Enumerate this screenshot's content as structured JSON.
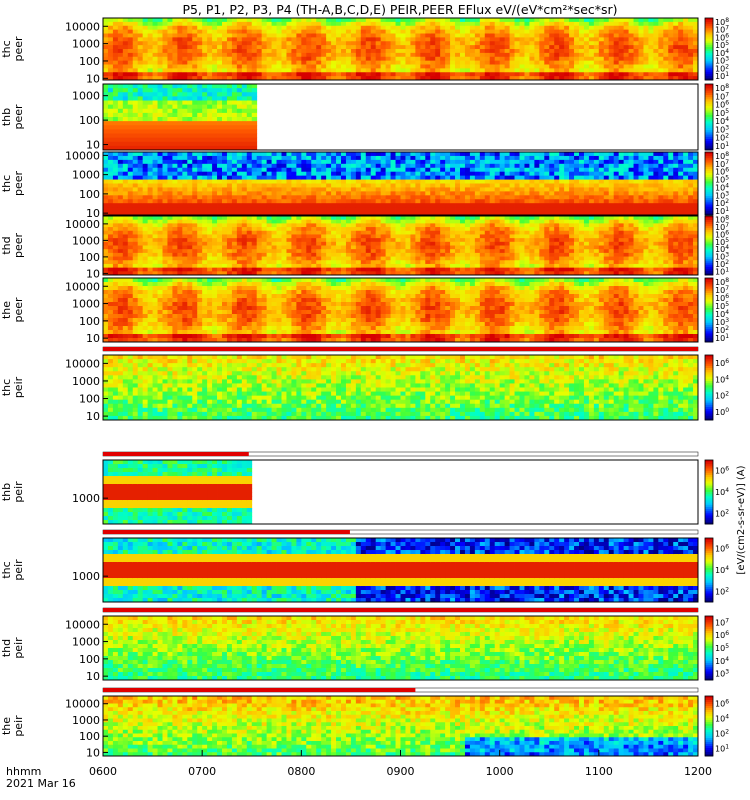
{
  "title": "P5, P1, P2, P3, P4 (TH-A,B,C,D,E) PEIR,PEER EFlux eV/(eV*cm²*sec*sr)",
  "time_axis": {
    "label_line1": "hhmm",
    "label_line2": "2021 Mar 16",
    "ticks": [
      "0600",
      "0700",
      "0800",
      "0900",
      "1000",
      "1100",
      "1200"
    ]
  },
  "colorbar_label": "[eV/(cm2-s-sr-eV)] (A)",
  "chart_data": [
    {
      "type": "heatmap",
      "ylabel": [
        "thc",
        "peer"
      ],
      "yscale": "log",
      "y_ticks": [
        "10",
        "100",
        "1000",
        "10000"
      ],
      "ylim": [
        8,
        30000
      ],
      "x_range": [
        "0600",
        "1200"
      ],
      "coverage": [
        0,
        1
      ],
      "bar_fraction": 0,
      "colorbar_ticks": [
        "10^1",
        "10^2",
        "10^3",
        "10^4",
        "10^5",
        "10^6",
        "10^7",
        "10^8"
      ],
      "profile": "peer_full",
      "seed": 11
    },
    {
      "type": "heatmap",
      "ylabel": [
        "thb",
        "peer"
      ],
      "yscale": "log",
      "y_ticks": [
        "10",
        "100",
        "1000"
      ],
      "ylim": [
        6,
        3000
      ],
      "x_range": [
        "0600",
        "1200"
      ],
      "coverage": [
        0,
        0.255
      ],
      "bar_fraction": 0,
      "colorbar_ticks": [
        "10^1",
        "10^2",
        "10^3",
        "10^4",
        "10^5",
        "10^6",
        "10^7",
        "10^8"
      ],
      "profile": "thb_peer",
      "seed": 23
    },
    {
      "type": "heatmap",
      "ylabel": [
        "thc",
        "peer"
      ],
      "yscale": "log",
      "y_ticks": [
        "10",
        "100",
        "1000",
        "10000"
      ],
      "ylim": [
        8,
        15000
      ],
      "x_range": [
        "0600",
        "1200"
      ],
      "coverage": [
        0,
        1
      ],
      "bar_fraction": 0,
      "colorbar_ticks": [
        "10^1",
        "10^2",
        "10^3",
        "10^4",
        "10^5",
        "10^6",
        "10^7",
        "10^8"
      ],
      "profile": "thc_peer",
      "seed": 37
    },
    {
      "type": "heatmap",
      "ylabel": [
        "thd",
        "peer"
      ],
      "yscale": "log",
      "y_ticks": [
        "10",
        "100",
        "1000",
        "10000"
      ],
      "ylim": [
        8,
        30000
      ],
      "x_range": [
        "0600",
        "1200"
      ],
      "coverage": [
        0,
        1
      ],
      "bar_fraction": 0,
      "colorbar_ticks": [
        "10^1",
        "10^2",
        "10^3",
        "10^4",
        "10^5",
        "10^6",
        "10^7",
        "10^8"
      ],
      "profile": "peer_full",
      "seed": 41
    },
    {
      "type": "heatmap",
      "ylabel": [
        "the",
        "peer"
      ],
      "yscale": "log",
      "y_ticks": [
        "10",
        "100",
        "1000",
        "10000"
      ],
      "ylim": [
        6,
        30000
      ],
      "x_range": [
        "0600",
        "1200"
      ],
      "coverage": [
        0,
        1
      ],
      "bar_fraction": 0,
      "colorbar_ticks": [
        "10^1",
        "10^2",
        "10^3",
        "10^4",
        "10^5",
        "10^6",
        "10^7",
        "10^8"
      ],
      "profile": "peer_full",
      "seed": 53
    },
    {
      "type": "heatmap",
      "ylabel": [
        "thc",
        "peir"
      ],
      "yscale": "log",
      "y_ticks": [
        "10",
        "100",
        "1000",
        "10000"
      ],
      "ylim": [
        6,
        30000
      ],
      "x_range": [
        "0600",
        "1200"
      ],
      "coverage": [
        0,
        1
      ],
      "bar_fraction": 1,
      "colorbar_ticks": [
        "10^0",
        "10^2",
        "10^4",
        "10^6"
      ],
      "profile": "peir_full",
      "seed": 61
    },
    {
      "type": "heatmap",
      "ylabel": [
        "thb",
        "peir"
      ],
      "yscale": "log",
      "y_ticks": [
        "1000"
      ],
      "ylim": [
        100,
        30000
      ],
      "x_range": [
        "0600",
        "1200"
      ],
      "coverage": [
        0,
        0.25
      ],
      "bar_fraction": 0.245,
      "colorbar_ticks": [
        "10^2",
        "10^4",
        "10^6"
      ],
      "profile": "peir_band",
      "seed": 71
    },
    {
      "type": "heatmap",
      "ylabel": [
        "thc",
        "peir"
      ],
      "yscale": "log",
      "y_ticks": [
        "1000"
      ],
      "ylim": [
        100,
        30000
      ],
      "x_range": [
        "0600",
        "1200"
      ],
      "coverage": [
        0,
        1
      ],
      "bar_fraction": 0.415,
      "colorbar_ticks": [
        "10^2",
        "10^4",
        "10^6"
      ],
      "profile": "thc_peir",
      "seed": 83
    },
    {
      "type": "heatmap",
      "ylabel": [
        "thd",
        "peir"
      ],
      "yscale": "log",
      "y_ticks": [
        "10",
        "100",
        "1000",
        "10000"
      ],
      "ylim": [
        6,
        30000
      ],
      "x_range": [
        "0600",
        "1200"
      ],
      "coverage": [
        0,
        1
      ],
      "bar_fraction": 1,
      "colorbar_ticks": [
        "10^3",
        "10^4",
        "10^5",
        "10^6",
        "10^7"
      ],
      "profile": "peir_green",
      "seed": 97
    },
    {
      "type": "heatmap",
      "ylabel": [
        "the",
        "peir"
      ],
      "yscale": "log",
      "y_ticks": [
        "10",
        "100",
        "1000",
        "10000"
      ],
      "ylim": [
        6,
        30000
      ],
      "x_range": [
        "0600",
        "1200"
      ],
      "coverage": [
        0,
        1
      ],
      "bar_fraction": 0.525,
      "colorbar_ticks": [
        "10^1",
        "10^2",
        "10^4",
        "10^6"
      ],
      "profile": "the_peir",
      "seed": 101
    }
  ]
}
